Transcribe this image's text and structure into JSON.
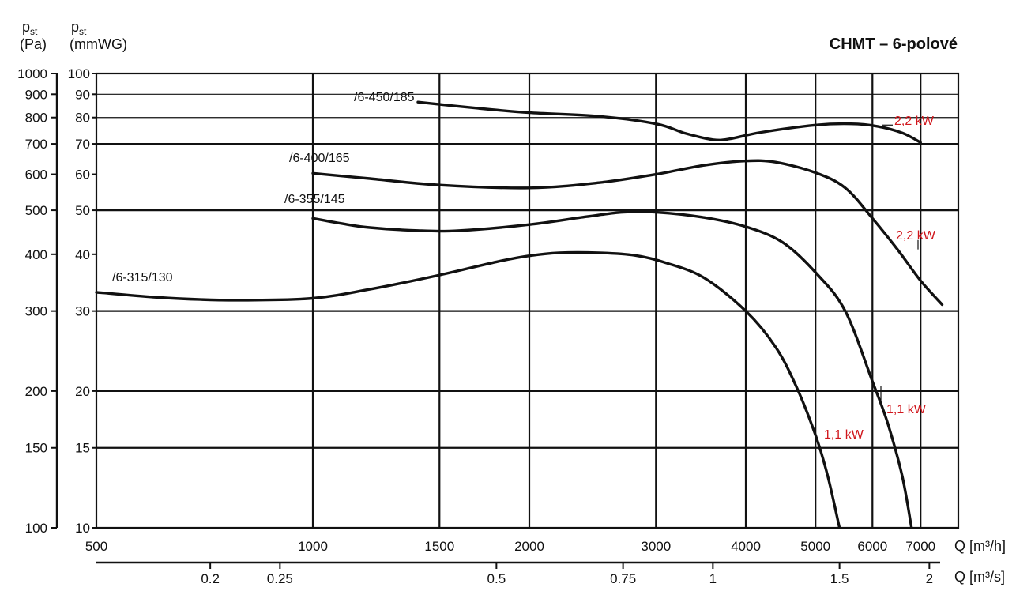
{
  "chart_data": {
    "type": "line",
    "title": "CHMT – 6-polové",
    "x_scale": "log",
    "y_scale": "log",
    "xlim": [
      500,
      8300
    ],
    "ylim": [
      100,
      1000
    ],
    "grid": true,
    "axes": {
      "y_left_pa": {
        "symbol": "p",
        "subscript": "st",
        "unit": "(Pa)",
        "ticks": [
          100,
          150,
          200,
          300,
          400,
          500,
          600,
          700,
          800,
          900,
          1000
        ]
      },
      "y_left_mmwg": {
        "symbol": "p",
        "subscript": "st",
        "unit": "(mmWG)",
        "ticks": [
          10,
          15,
          20,
          30,
          40,
          50,
          60,
          70,
          80,
          90,
          100
        ]
      },
      "x_m3h": {
        "label": "Q [m³/h]",
        "ticks": [
          500,
          1000,
          1500,
          2000,
          3000,
          4000,
          5000,
          6000,
          7000
        ]
      },
      "x_m3s": {
        "label": "Q [m³/s]",
        "ticks": [
          0.2,
          0.25,
          0.5,
          0.75,
          1,
          1.5,
          2
        ],
        "tick_labels": [
          "0.2",
          "0.25",
          "0.5",
          "0.75",
          "1",
          "1.5",
          "2"
        ]
      }
    },
    "series": [
      {
        "name": "/6-315/130",
        "points": [
          [
            500,
            330
          ],
          [
            600,
            322
          ],
          [
            700,
            318
          ],
          [
            800,
            317
          ],
          [
            1000,
            320
          ],
          [
            1200,
            335
          ],
          [
            1500,
            360
          ],
          [
            1800,
            385
          ],
          [
            2000,
            397
          ],
          [
            2200,
            403
          ],
          [
            2500,
            403
          ],
          [
            2800,
            398
          ],
          [
            3100,
            383
          ],
          [
            3500,
            355
          ],
          [
            4000,
            300
          ],
          [
            4400,
            250
          ],
          [
            4700,
            205
          ],
          [
            5000,
            160
          ],
          [
            5200,
            130
          ],
          [
            5400,
            100
          ]
        ]
      },
      {
        "name": "/6-355/145",
        "points": [
          [
            1000,
            480
          ],
          [
            1100,
            467
          ],
          [
            1200,
            458
          ],
          [
            1400,
            451
          ],
          [
            1600,
            451
          ],
          [
            2000,
            465
          ],
          [
            2400,
            484
          ],
          [
            2700,
            495
          ],
          [
            3000,
            495
          ],
          [
            3500,
            482
          ],
          [
            4000,
            460
          ],
          [
            4500,
            425
          ],
          [
            5000,
            365
          ],
          [
            5500,
            300
          ],
          [
            6000,
            210
          ],
          [
            6300,
            170
          ],
          [
            6600,
            130
          ],
          [
            6800,
            100
          ]
        ]
      },
      {
        "name": "/6-400/165",
        "points": [
          [
            1000,
            603
          ],
          [
            1200,
            587
          ],
          [
            1500,
            568
          ],
          [
            2000,
            560
          ],
          [
            2500,
            575
          ],
          [
            3000,
            600
          ],
          [
            3500,
            628
          ],
          [
            4000,
            642
          ],
          [
            4400,
            638
          ],
          [
            5000,
            605
          ],
          [
            5500,
            560
          ],
          [
            6000,
            480
          ],
          [
            6500,
            410
          ],
          [
            7000,
            350
          ],
          [
            7500,
            310
          ]
        ]
      },
      {
        "name": "/6-450/185",
        "points": [
          [
            1400,
            865
          ],
          [
            1700,
            838
          ],
          [
            2000,
            820
          ],
          [
            2500,
            805
          ],
          [
            3000,
            775
          ],
          [
            3300,
            738
          ],
          [
            3600,
            715
          ],
          [
            3800,
            718
          ],
          [
            4200,
            742
          ],
          [
            5000,
            770
          ],
          [
            5600,
            775
          ],
          [
            6100,
            765
          ],
          [
            6600,
            740
          ],
          [
            7000,
            705
          ]
        ]
      }
    ],
    "power_labels": [
      "2,2 kW",
      "2,2 kW",
      "1,1 kW",
      "1,1 kW"
    ],
    "colors": {
      "curves": "#111111",
      "power_labels": "#d0161c",
      "grid": "#111111"
    }
  }
}
